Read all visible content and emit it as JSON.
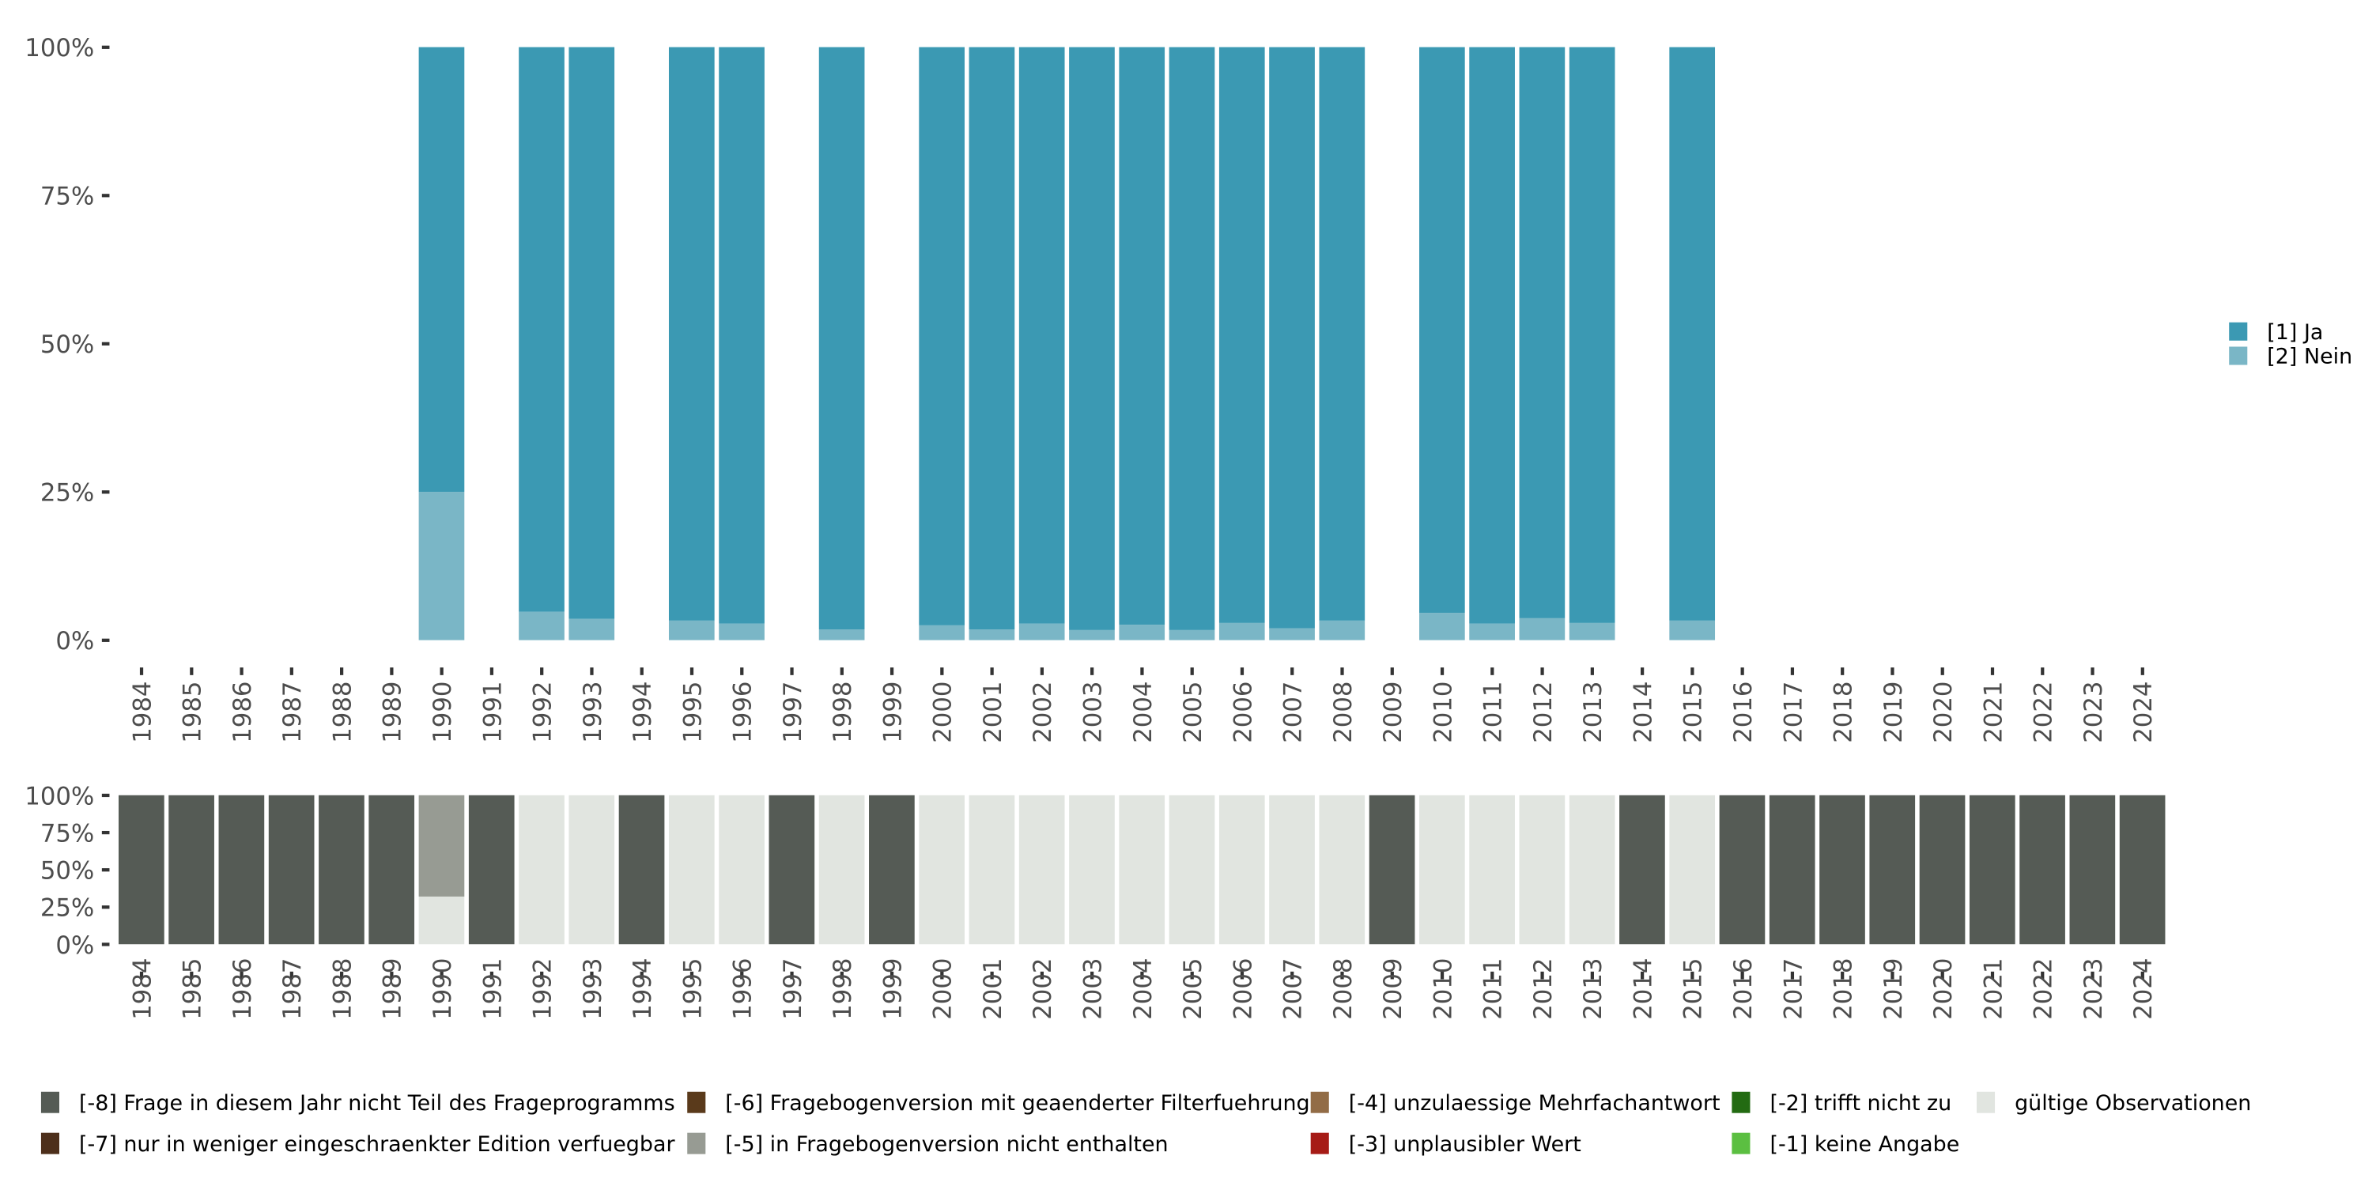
{
  "chart_data": [
    {
      "type": "bar",
      "stacked": true,
      "title": "",
      "xlabel": "",
      "ylabel": "",
      "ylim": [
        0,
        100
      ],
      "yticks": [
        "0%",
        "25%",
        "50%",
        "75%",
        "100%"
      ],
      "categories": [
        "1984",
        "1985",
        "1986",
        "1987",
        "1988",
        "1989",
        "1990",
        "1991",
        "1992",
        "1993",
        "1994",
        "1995",
        "1996",
        "1997",
        "1998",
        "1999",
        "2000",
        "2001",
        "2002",
        "2003",
        "2004",
        "2005",
        "2006",
        "2007",
        "2008",
        "2009",
        "2010",
        "2011",
        "2012",
        "2013",
        "2014",
        "2015",
        "2016",
        "2017",
        "2018",
        "2019",
        "2020",
        "2021",
        "2022",
        "2023",
        "2024"
      ],
      "legend_position": "right",
      "series": [
        {
          "name": "[2] Nein",
          "color": "#7ab6c6",
          "values": [
            null,
            null,
            null,
            null,
            null,
            null,
            25,
            null,
            4.8,
            3.6,
            null,
            3.3,
            2.8,
            null,
            1.8,
            null,
            2.5,
            1.8,
            2.8,
            1.7,
            2.6,
            1.7,
            2.9,
            2.0,
            3.3,
            null,
            4.6,
            2.8,
            3.7,
            2.9,
            null,
            3.3,
            null,
            null,
            null,
            null,
            null,
            null,
            null,
            null,
            null
          ]
        },
        {
          "name": "[1] Ja",
          "color": "#3b99b3",
          "values": [
            null,
            null,
            null,
            null,
            null,
            null,
            75,
            null,
            95.2,
            96.4,
            null,
            96.7,
            97.2,
            null,
            98.2,
            null,
            97.5,
            98.2,
            97.2,
            98.3,
            97.4,
            98.3,
            97.1,
            98.0,
            96.7,
            null,
            95.4,
            97.2,
            96.3,
            97.1,
            null,
            96.7,
            null,
            null,
            null,
            null,
            null,
            null,
            null,
            null,
            null
          ]
        }
      ]
    },
    {
      "type": "bar",
      "stacked": true,
      "ylim": [
        0,
        100
      ],
      "yticks": [
        "0%",
        "25%",
        "50%",
        "75%",
        "100%"
      ],
      "categories": [
        "1984",
        "1985",
        "1986",
        "1987",
        "1988",
        "1989",
        "1990",
        "1991",
        "1992",
        "1993",
        "1994",
        "1995",
        "1996",
        "1997",
        "1998",
        "1999",
        "2000",
        "2001",
        "2002",
        "2003",
        "2004",
        "2005",
        "2006",
        "2007",
        "2008",
        "2009",
        "2010",
        "2011",
        "2012",
        "2013",
        "2014",
        "2015",
        "2016",
        "2017",
        "2018",
        "2019",
        "2020",
        "2021",
        "2022",
        "2023",
        "2024"
      ],
      "legend_position": "bottom",
      "series": [
        {
          "name": "gültige Observationen",
          "color": "#e1e5e0",
          "values": [
            0,
            0,
            0,
            0,
            0,
            0,
            32,
            0,
            100,
            100,
            0,
            100,
            100,
            0,
            100,
            0,
            100,
            100,
            100,
            100,
            100,
            100,
            100,
            100,
            100,
            0,
            100,
            100,
            100,
            100,
            0,
            100,
            0,
            0,
            0,
            0,
            0,
            0,
            0,
            0,
            0
          ]
        },
        {
          "name": "[-5] in Fragebogenversion nicht enthalten",
          "color": "#979b93",
          "values": [
            0,
            0,
            0,
            0,
            0,
            0,
            68,
            0,
            0,
            0,
            0,
            0,
            0,
            0,
            0,
            0,
            0,
            0,
            0,
            0,
            0,
            0,
            0,
            0,
            0,
            0,
            0,
            0,
            0,
            0,
            0,
            0,
            0,
            0,
            0,
            0,
            0,
            0,
            0,
            0,
            0
          ]
        },
        {
          "name": "[-8] Frage in diesem Jahr nicht Teil des Frageprogramms",
          "color": "#555b55",
          "values": [
            100,
            100,
            100,
            100,
            100,
            100,
            0,
            100,
            0,
            0,
            100,
            0,
            0,
            100,
            0,
            100,
            0,
            0,
            0,
            0,
            0,
            0,
            0,
            0,
            0,
            100,
            0,
            0,
            0,
            0,
            100,
            0,
            100,
            100,
            100,
            100,
            100,
            100,
            100,
            100,
            100
          ]
        }
      ],
      "legend": [
        {
          "label": "[-8] Frage in diesem Jahr nicht Teil des Frageprogramms",
          "color": "#555b55"
        },
        {
          "label": "[-7] nur in weniger eingeschraenkter Edition verfuegbar",
          "color": "#4d2f1b"
        },
        {
          "label": "[-6] Fragebogenversion mit geaenderter Filterfuehrung",
          "color": "#5a3a1b"
        },
        {
          "label": "[-5] in Fragebogenversion nicht enthalten",
          "color": "#979b93"
        },
        {
          "label": "[-4] unzulaessige Mehrfachantwort",
          "color": "#926c46"
        },
        {
          "label": "[-3] unplausibler Wert",
          "color": "#a61b16"
        },
        {
          "label": "[-2] trifft nicht zu",
          "color": "#236b12"
        },
        {
          "label": "[-1] keine Angabe",
          "color": "#5bbf41"
        },
        {
          "label": "gültige Observationen",
          "color": "#e1e5e0"
        }
      ]
    }
  ]
}
